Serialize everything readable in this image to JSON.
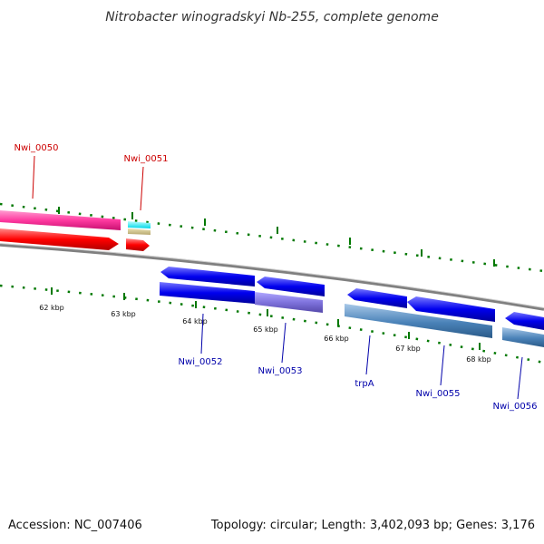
{
  "title": "Nitrobacter winogradskyi Nb-255, complete genome",
  "footer": {
    "accession": "Accession: NC_007406",
    "summary": "Topology: circular; Length: 3,402,093 bp; Genes: 3,176"
  },
  "colors": {
    "backbone": "#8c8c8c",
    "tick": "#007800",
    "forward_label": "#cc0000",
    "reverse_label": "#0000aa"
  },
  "kbp_ticks": [
    "62 kbp",
    "63 kbp",
    "64 kbp",
    "65 kbp",
    "66 kbp",
    "67 kbp",
    "68 kbp"
  ],
  "genes": [
    {
      "id": "Nwi_0050",
      "label": "Nwi_0050",
      "strand": "forward"
    },
    {
      "id": "Nwi_0051",
      "label": "Nwi_0051",
      "strand": "forward"
    },
    {
      "id": "Nwi_0052",
      "label": "Nwi_0052",
      "strand": "reverse"
    },
    {
      "id": "Nwi_0053",
      "label": "Nwi_0053",
      "strand": "reverse"
    },
    {
      "id": "trpA",
      "label": "trpA",
      "strand": "reverse"
    },
    {
      "id": "Nwi_0055",
      "label": "Nwi_0055",
      "strand": "reverse"
    },
    {
      "id": "Nwi_0056",
      "label": "Nwi_0056",
      "strand": "reverse"
    }
  ]
}
